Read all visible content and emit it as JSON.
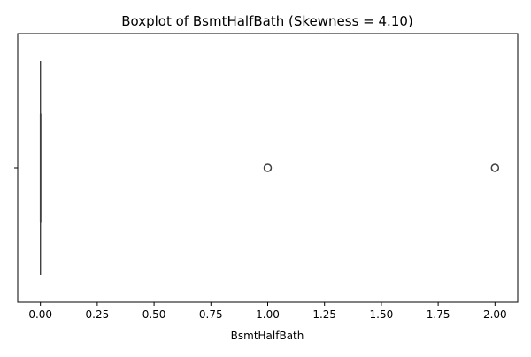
{
  "chart_data": {
    "type": "box",
    "title": "Boxplot of BsmtHalfBath (Skewness = 4.10)",
    "xlabel": "BsmtHalfBath",
    "ylabel": "",
    "orientation": "horizontal",
    "xlim": [
      -0.1,
      2.1
    ],
    "x_ticks": [
      0.0,
      0.25,
      0.5,
      0.75,
      1.0,
      1.25,
      1.5,
      1.75,
      2.0
    ],
    "x_tick_labels": [
      "0.00",
      "0.25",
      "0.50",
      "0.75",
      "1.00",
      "1.25",
      "1.50",
      "1.75",
      "2.00"
    ],
    "box": {
      "q1": 0.0,
      "median": 0.0,
      "q3": 0.0,
      "whisker_low": 0.0,
      "whisker_high": 0.0
    },
    "outliers": [
      1.0,
      2.0
    ],
    "grid": false,
    "colors": {
      "box_line": "#3f3f3f",
      "outlier_edge": "#3f3f3f",
      "axes": "#000000"
    }
  }
}
